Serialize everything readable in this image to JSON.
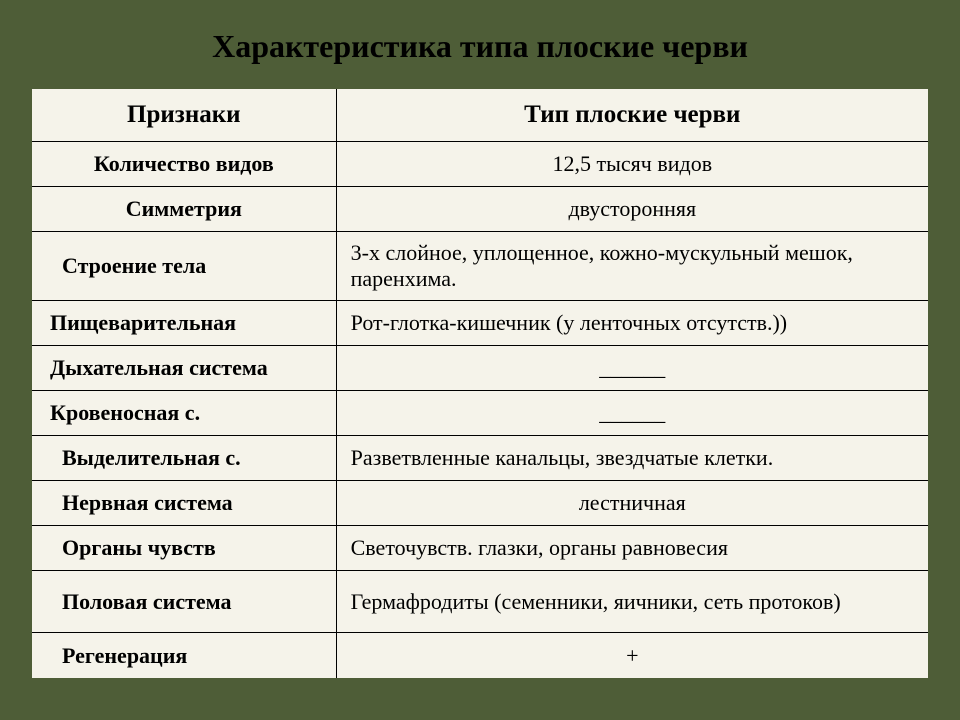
{
  "title": "Характеристика типа плоские черви",
  "table": {
    "type": "table",
    "background_color": "#f5f3ea",
    "border_color": "#000000",
    "outer_background": "#4e5d37",
    "title_fontsize": 32,
    "header_fontsize": 25,
    "body_fontsize": 22,
    "col1_width_pct": 34,
    "col2_width_pct": 66,
    "header": {
      "col1": "Признаки",
      "col2": "Тип плоские черви"
    },
    "rows": [
      {
        "label": "Количество видов",
        "value": "12,5 тысяч видов",
        "label_bold": true,
        "label_align": "center",
        "value_align": "center"
      },
      {
        "label": "Симметрия",
        "value": "двусторонняя",
        "label_bold": true,
        "label_align": "center",
        "value_align": "center"
      },
      {
        "label": "Строение тела",
        "value": "3-х слойное, уплощенное, кожно-мускульный мешок, паренхима.",
        "label_bold": true,
        "label_align": "left-indent",
        "value_align": "left"
      },
      {
        "label": "Пищеварительная",
        "value": "Рот-глотка-кишечник (у ленточных отсутств.))",
        "label_bold": true,
        "label_align": "left-small",
        "value_align": "left"
      },
      {
        "label": "Дыхательная система",
        "value": "______",
        "label_bold": true,
        "label_align": "left-small",
        "value_align": "center"
      },
      {
        "label": "Кровеносная с.",
        "value": "______",
        "label_bold": true,
        "label_align": "left-small",
        "value_align": "center"
      },
      {
        "label": "Выделительная с.",
        "value": "Разветвленные канальцы, звездчатые клетки.",
        "label_bold": true,
        "label_align": "left-indent",
        "value_align": "left"
      },
      {
        "label": "Нервная система",
        "value": "лестничная",
        "label_bold": true,
        "label_align": "left-indent",
        "value_align": "center"
      },
      {
        "label": "Органы чувств",
        "value": "Светочувств. глазки, органы равновесия",
        "label_bold": true,
        "label_align": "left-indent",
        "value_align": "left"
      },
      {
        "label": "Половая система",
        "value": "Гермафродиты (семенники, яичники, сеть протоков)",
        "label_bold": true,
        "label_align": "left-indent",
        "value_align": "left"
      },
      {
        "label": "Регенерация",
        "value": "+",
        "label_bold": true,
        "label_align": "left-indent",
        "value_align": "center"
      }
    ]
  }
}
